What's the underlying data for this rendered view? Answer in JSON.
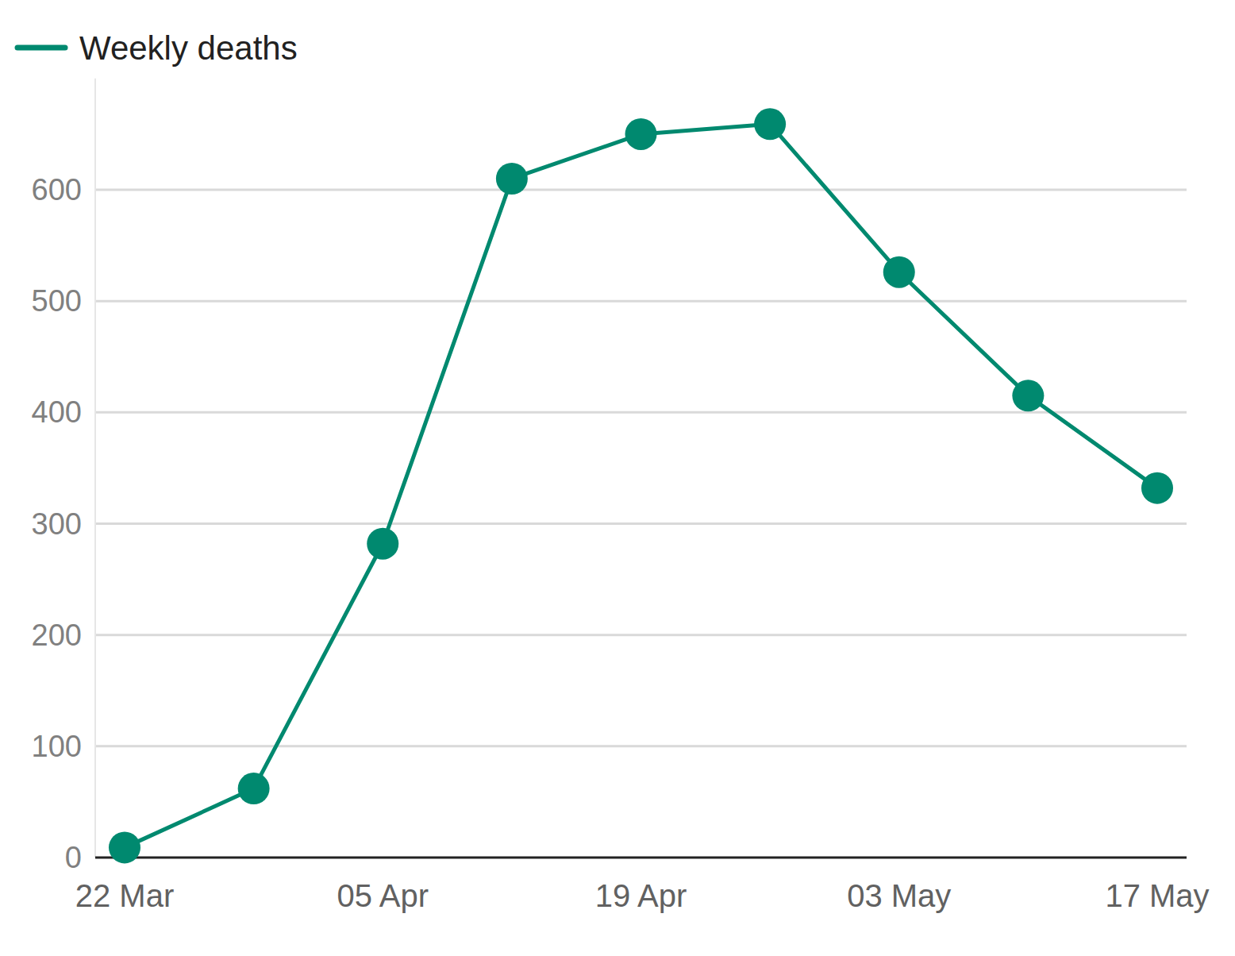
{
  "chart_data": {
    "type": "line",
    "categories": [
      "22 Mar",
      null,
      "05 Apr",
      null,
      "19 Apr",
      null,
      "03 May",
      null,
      "17 May"
    ],
    "series": [
      {
        "name": "Weekly deaths",
        "color": "#00896f",
        "marker": "circle",
        "values": [
          9,
          62,
          282,
          610,
          650,
          659,
          526,
          415,
          332
        ]
      }
    ],
    "ylim": [
      0,
      700
    ],
    "yticks": [
      0,
      100,
      200,
      300,
      400,
      500,
      600
    ],
    "grid": true,
    "legend": "top-left"
  }
}
